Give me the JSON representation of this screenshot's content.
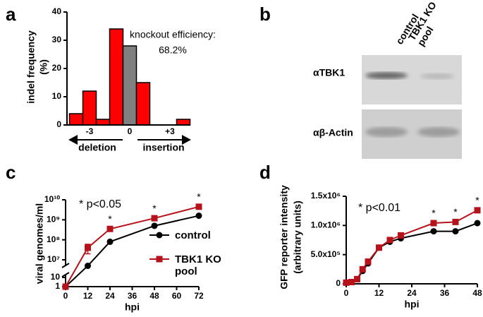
{
  "panel_labels": [
    "a",
    "b",
    "c",
    "d"
  ],
  "chart_data": [
    {
      "type": "indel",
      "ylabel": [
        "indel frequency",
        "(%)"
      ],
      "annotation": [
        "knockout efficiency:",
        "68.2%"
      ],
      "categories": [
        null,
        "-3",
        null,
        null,
        "0",
        null,
        null,
        "+3",
        null
      ],
      "values": [
        4,
        12,
        2,
        34,
        28,
        15,
        0,
        0,
        2
      ],
      "colors": [
        "#ff0000",
        "#ff0000",
        "#ff0000",
        "#ff0000",
        "#808080",
        "#ff0000",
        "#ff0000",
        "#ff0000",
        "#ff0000"
      ],
      "direction_labels": [
        "deletion",
        "insertion"
      ],
      "ylim": [
        0,
        40
      ],
      "yticks": [
        0,
        10,
        20,
        30,
        40
      ]
    },
    {
      "type": "line",
      "ylabel": "viral genomes/ml",
      "xlabel": "hpi",
      "note": "* p<0.05",
      "x": [
        0,
        12,
        24,
        48,
        72
      ],
      "series": [
        {
          "name": "control",
          "color": "#000000",
          "marker": "circle",
          "values": [
            1,
            5000000,
            80000000,
            500000000,
            1600000000
          ]
        },
        {
          "name": "TBK1 KO pool",
          "color": "#b5121b",
          "marker": "square",
          "values": [
            1,
            40000000,
            350000000,
            1200000000,
            4500000000
          ],
          "errors": [
            null,
            20000000,
            null,
            null,
            null
          ]
        }
      ],
      "significance": {
        "label": "*",
        "x": [
          24,
          48,
          72
        ]
      },
      "legend": "right",
      "xlim": [
        0,
        72
      ],
      "xticks": [
        0,
        12,
        24,
        36,
        48,
        60,
        72
      ],
      "yscale": "log",
      "ybreak": [
        10,
        10000000
      ],
      "ylim": [
        1,
        10000000000
      ],
      "yticks": [
        1,
        10,
        {
          "value": 10000000,
          "label": "10⁷"
        },
        {
          "value": 100000000,
          "label": "10⁸"
        },
        {
          "value": 1000000000,
          "label": "10⁹"
        },
        {
          "value": 10000000000,
          "label": "10¹⁰"
        }
      ]
    },
    {
      "type": "line",
      "ylabel": [
        "GFP reporter intensity",
        "(arbitrary units)"
      ],
      "xlabel": "hpi",
      "note": "* p<0.01",
      "x": [
        0,
        2,
        4,
        6,
        8,
        12,
        16,
        20,
        32,
        40,
        48
      ],
      "series": [
        {
          "name": "control",
          "color": "#000000",
          "marker": "circle",
          "values": [
            20000,
            30000,
            80000,
            220000,
            350000,
            620000,
            720000,
            780000,
            900000,
            900000,
            1040000
          ]
        },
        {
          "name": "TBK1 KO pool",
          "color": "#b5121b",
          "marker": "square",
          "values": [
            20000,
            30000,
            80000,
            250000,
            380000,
            620000,
            750000,
            830000,
            1040000,
            1060000,
            1260000
          ]
        }
      ],
      "significance": {
        "label": "*",
        "x": [
          32,
          40,
          48
        ]
      },
      "xlim": [
        0,
        48
      ],
      "xticks": [
        0,
        12,
        24,
        36,
        48
      ],
      "ylim": [
        0,
        1500000
      ],
      "yticks": [
        0,
        {
          "value": 500000,
          "label": "5.0x10⁵"
        },
        {
          "value": 1000000,
          "label": "1.0x10⁶"
        },
        {
          "value": 1500000,
          "label": "1.5x10⁶"
        }
      ]
    }
  ],
  "blot": {
    "lanes": [
      "control",
      "TBK1 KO pool"
    ],
    "rows": [
      "αTBK1",
      "αβ-Actin"
    ]
  }
}
